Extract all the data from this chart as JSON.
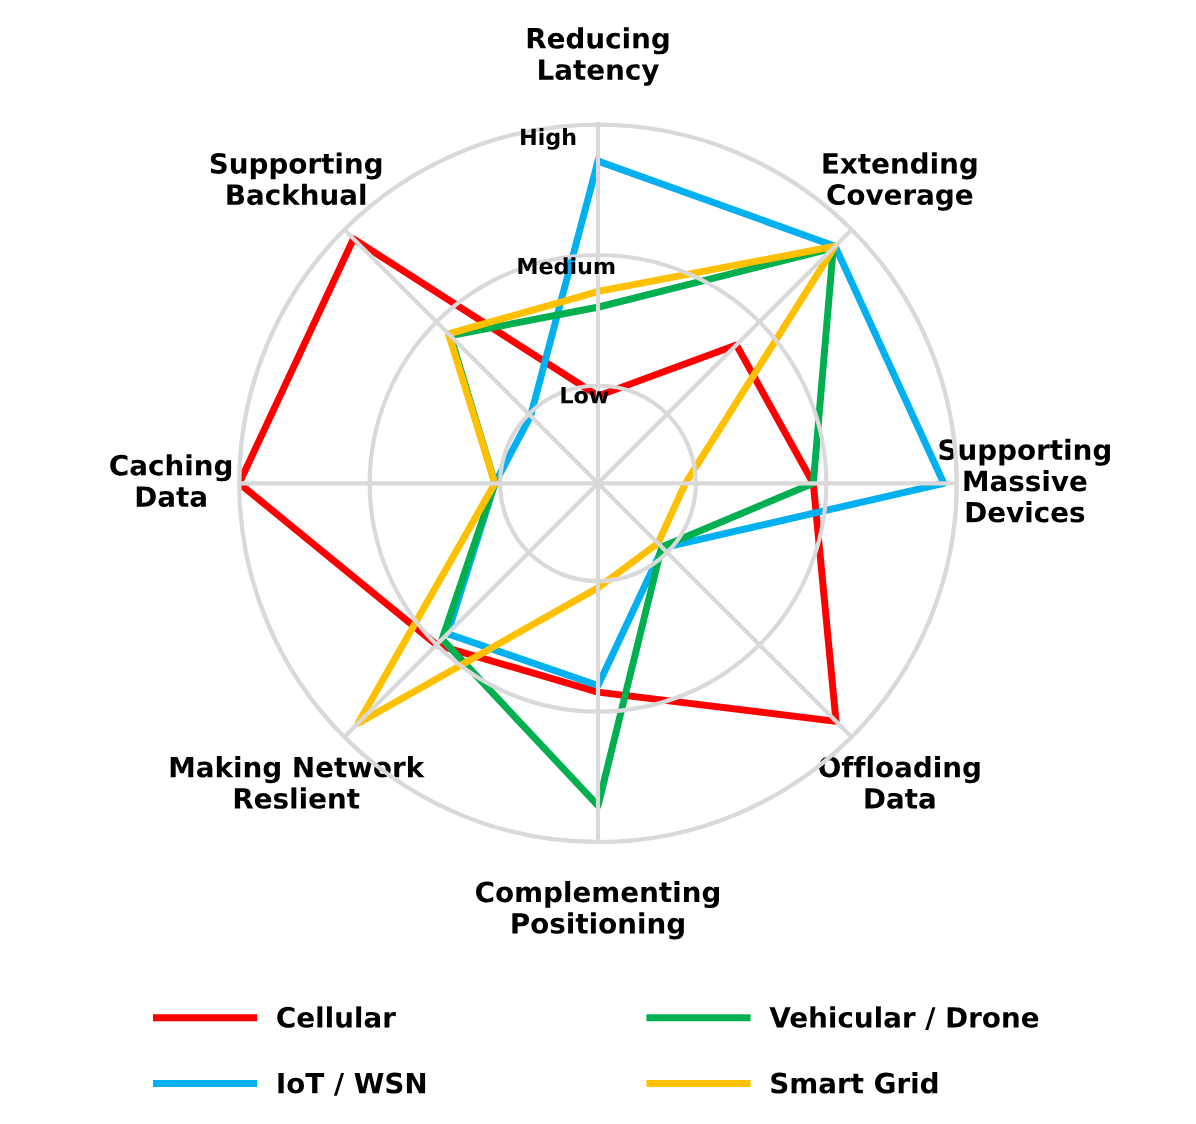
{
  "chart_data": {
    "type": "radar",
    "categories": [
      "Reducing\nLatency",
      "Extending\nCoverage",
      "Supporting\nMassive\nDevices",
      "Offloading\nData",
      "Complementing\nPositioning",
      "Making Network\nReslient",
      "Caching\nData",
      "Supporting\nBackhual"
    ],
    "series": [
      {
        "name": "Cellular",
        "color": "#ff0000",
        "values": [
          0.92,
          1.75,
          1.9,
          2.83,
          1.85,
          2.0,
          3.0,
          2.9
        ]
      },
      {
        "name": "IoT / WSN",
        "color": "#00b0f0",
        "values": [
          2.72,
          2.82,
          2.9,
          0.95,
          1.8,
          1.88,
          1.04,
          0.98
        ]
      },
      {
        "name": "Vehicular / Drone",
        "color": "#00b050",
        "values": [
          1.6,
          2.8,
          1.9,
          0.94,
          2.72,
          1.94,
          1.04,
          1.85
        ]
      },
      {
        "name": "Smart Grid",
        "color": "#ffc000",
        "values": [
          1.72,
          2.82,
          0.92,
          0.9,
          1.05,
          2.85,
          1.04,
          1.87
        ]
      }
    ],
    "ylim": [
      0.25,
      3
    ],
    "yticks": [
      {
        "value": 1,
        "label": "Low"
      },
      {
        "value": 2,
        "label": "Medium"
      },
      {
        "value": 3,
        "label": "High"
      }
    ],
    "grid": true,
    "legend": "bottom",
    "marker": "none",
    "line_style": "solid"
  }
}
